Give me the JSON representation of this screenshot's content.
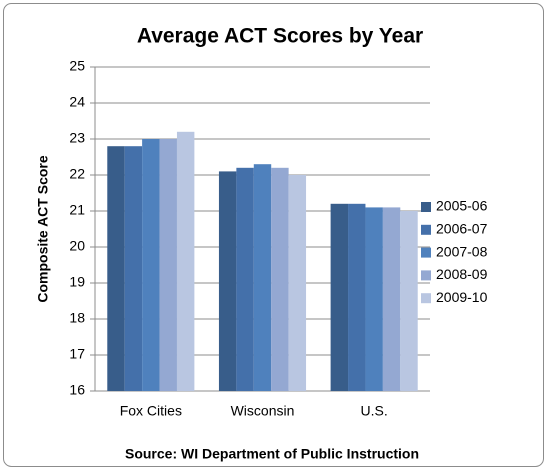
{
  "chart_data": {
    "type": "bar",
    "title": "Average ACT Scores by Year",
    "y_label": "Composite ACT Score",
    "source": "Source: WI Department of Public Instruction",
    "categories": [
      "Fox Cities",
      "Wisconsin",
      "U.S."
    ],
    "series": [
      {
        "name": "2005-06",
        "color": "#385d8a",
        "values": [
          22.8,
          22.1,
          21.2
        ]
      },
      {
        "name": "2006-07",
        "color": "#4470aa",
        "values": [
          22.8,
          22.2,
          21.2
        ]
      },
      {
        "name": "2007-08",
        "color": "#4f81bd",
        "values": [
          23.0,
          22.3,
          21.1
        ]
      },
      {
        "name": "2008-09",
        "color": "#94a8d2",
        "values": [
          23.0,
          22.2,
          21.1
        ]
      },
      {
        "name": "2009-10",
        "color": "#b9c6e1",
        "values": [
          23.2,
          22.0,
          21.0
        ]
      }
    ],
    "ylim": [
      16,
      25
    ],
    "yticks": [
      16,
      17,
      18,
      19,
      20,
      21,
      22,
      23,
      24,
      25
    ],
    "grid": true,
    "legend": "right"
  }
}
